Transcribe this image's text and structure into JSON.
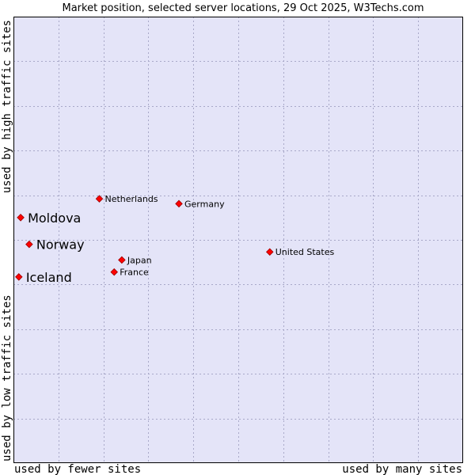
{
  "chart_data": {
    "type": "scatter",
    "title": "Market position, selected server locations, 29 Oct 2025, W3Techs.com",
    "xlabel_left": "used by fewer sites",
    "xlabel_right": "used by many sites",
    "ylabel_bottom": "used by low traffic sites",
    "ylabel_top": "used by high traffic sites",
    "xlim": [
      0,
      100
    ],
    "ylim": [
      0,
      100
    ],
    "grid": true,
    "colors": {
      "plot_background": "#e4e4f8",
      "grid": "#a8a8c8",
      "border": "#000000",
      "marker": "#ff0000",
      "marker_stroke": "#990000"
    },
    "points": [
      {
        "name": "Netherlands",
        "x": 19.1,
        "y": 59.2,
        "emphasis": false
      },
      {
        "name": "Germany",
        "x": 36.8,
        "y": 58.1,
        "emphasis": false
      },
      {
        "name": "Moldova",
        "x": 1.6,
        "y": 55.0,
        "emphasis": true
      },
      {
        "name": "Norway",
        "x": 3.5,
        "y": 49.0,
        "emphasis": true
      },
      {
        "name": "United States",
        "x": 57.0,
        "y": 47.3,
        "emphasis": false
      },
      {
        "name": "Japan",
        "x": 24.1,
        "y": 45.5,
        "emphasis": false
      },
      {
        "name": "France",
        "x": 22.4,
        "y": 42.8,
        "emphasis": false
      },
      {
        "name": "Iceland",
        "x": 1.2,
        "y": 41.7,
        "emphasis": true
      }
    ]
  }
}
